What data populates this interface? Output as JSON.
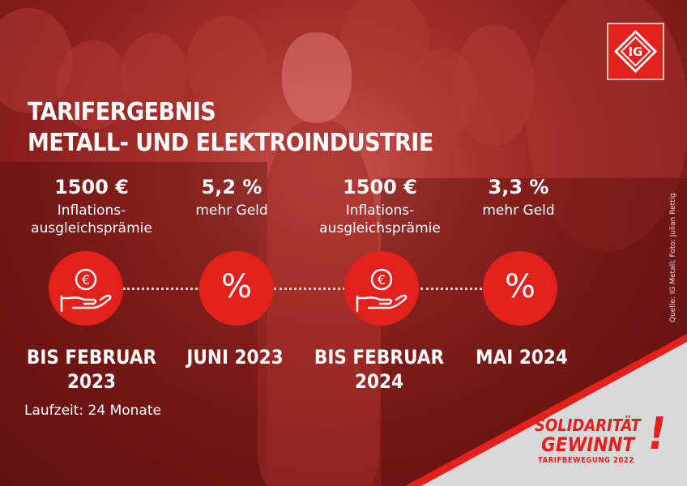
{
  "title": {
    "line1": "TARIFERGEBNIS",
    "line2": "METALL- UND ELEKTROINDUSTRIE"
  },
  "logo": {
    "text": "IG",
    "icon": "ig-metall-logo"
  },
  "milestones": [
    {
      "amount": "1500 €",
      "desc_line1": "Inflations-",
      "desc_line2": "ausgleichsprämie",
      "icon": "euro-hand-icon",
      "date_line1": "BIS FEBRUAR",
      "date_line2": "2023"
    },
    {
      "amount": "5,2 %",
      "desc_line1": "mehr Geld",
      "desc_line2": "",
      "icon": "%",
      "date_line1": "JUNI 2023",
      "date_line2": ""
    },
    {
      "amount": "1500 €",
      "desc_line1": "Inflations-",
      "desc_line2": "ausgleichsprämie",
      "icon": "euro-hand-icon",
      "date_line1": "BIS FEBRUAR",
      "date_line2": "2024"
    },
    {
      "amount": "3,3 %",
      "desc_line1": "mehr Geld",
      "desc_line2": "",
      "icon": "%",
      "date_line1": "MAI 2024",
      "date_line2": ""
    }
  ],
  "laufzeit": "Laufzeit: 24 Monate",
  "credit": "Quelle: IG Metall; Foto: Julian Rettig",
  "slogan": {
    "line1": "SOLIDARITÄT",
    "line2": "GEWINNT",
    "exclamation": "!",
    "line3": "TARIFBEWEGUNG 2022"
  },
  "colors": {
    "brand_red": "#e3201b",
    "background": "#8a1f1d",
    "corner_gray": "#d9d9d9",
    "text": "#ffffff"
  }
}
